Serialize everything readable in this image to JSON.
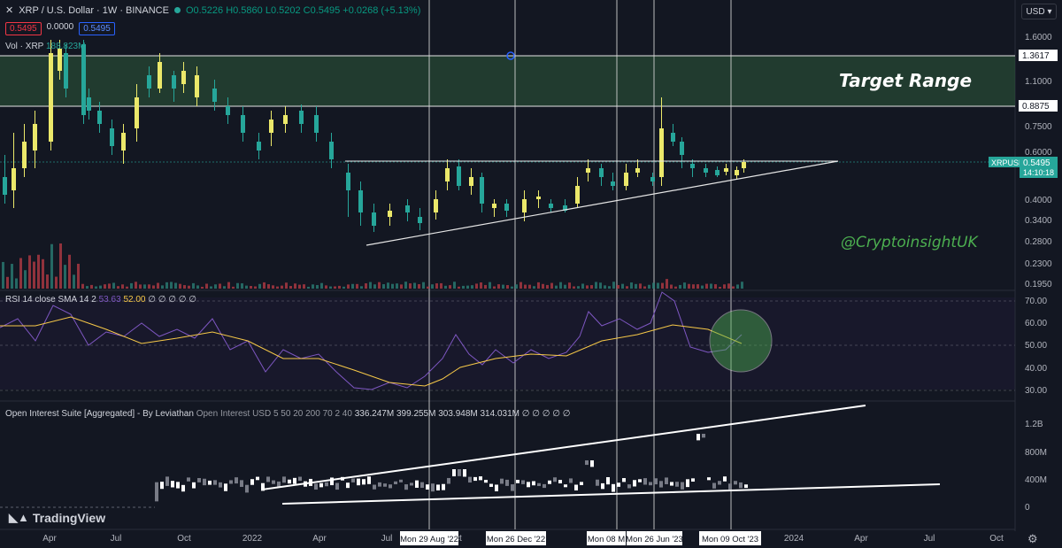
{
  "header": {
    "symbol": "XRP / U.S. Dollar · 1W · BINANCE",
    "ohlc": "O0.5226 H0.5860 L0.5202 C0.5495 +0.0268 (+5.13%)",
    "bid": "0.5495",
    "spread": "0.0000",
    "ask": "0.5495",
    "currency": "USD"
  },
  "volume_label": "Vol · XRP",
  "volume_value": "188.823M",
  "rsi_label": "RSI 14 close SMA 14 2",
  "rsi_value": "53.63",
  "rsi_sma_value": "52.00",
  "rsi_tail": "∅ ∅ ∅ ∅ ∅",
  "oi_label": "Open Interest Suite [Aggregated] - By Leviathan",
  "oi_params": "Open Interest USD 5 50 20 200 70 2 40",
  "oi_values": "336.247M 399.255M 303.948M 314.031M ∅ ∅ ∅ ∅ ∅",
  "annotations": {
    "target_range": "Target Range",
    "handle": "@CryptoinsightUK"
  },
  "price_axis": [
    "1.6000",
    "1.3617",
    "1.1000",
    "0.8875",
    "0.7500",
    "0.6000",
    "0.5495",
    "0.4000",
    "0.3400",
    "0.2800",
    "0.2300",
    "0.1950"
  ],
  "last_price_label": "XRPUSD",
  "last_price": "0.5495",
  "countdown": "14:10:18",
  "rsi_axis": [
    "70.00",
    "60.00",
    "50.00",
    "40.00",
    "30.00"
  ],
  "oi_axis": [
    "1.2B",
    "800M",
    "400M",
    "0"
  ],
  "time_axis": [
    "Apr",
    "Jul",
    "Oct",
    "2022",
    "Apr",
    "Jul",
    "Oct",
    "2024",
    "Apr",
    "Jul",
    "Oct"
  ],
  "date_markers": [
    "Mon 29 Aug '22",
    "Mon 26 Dec '22",
    "Mon 08 M",
    "Mon 26 Jun '23",
    "Mon 09 Oct '23"
  ],
  "brand": "TradingView",
  "colors": {
    "bull": "#ebe86a",
    "bear": "#26a69a",
    "rsi": "#7e57c2",
    "rsi_sma": "#f7c948",
    "target_zone": "#2e5a3a",
    "handle": "#4caf50",
    "background": "#131722"
  }
}
